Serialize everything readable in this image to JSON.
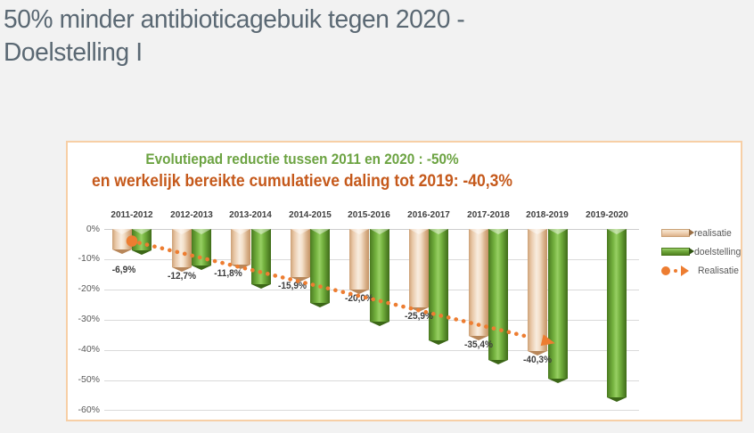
{
  "page": {
    "title_line1": "50% minder antibioticagebuik tegen 2020 -",
    "title_line2": "Doelstelling I"
  },
  "chart": {
    "legend": {
      "realisatie": "realisatie",
      "doelstelling": "doelstelling",
      "trend": "Realisatie"
    },
    "accent_border_color": "#f7cfa6"
  },
  "chart_data": {
    "type": "bar",
    "title": "Evolutiepad reductie tussen 2011 en 2020 : -50%",
    "subtitle": "en werkelijk bereikte cumulatieve daling tot 2019: -40,3%",
    "title_color": "#6ca342",
    "subtitle_color": "#c5591b",
    "categories": [
      "2011-2012",
      "2012-2013",
      "2013-2014",
      "2014-2015",
      "2015-2016",
      "2016-2017",
      "2017-2018",
      "2018-2019",
      "2019-2020"
    ],
    "series": [
      {
        "name": "realisatie",
        "color": "#f2d8be",
        "values": [
          -6.9,
          -12.7,
          -11.8,
          -15.9,
          -20.0,
          -25.9,
          -35.4,
          -40.3,
          null
        ],
        "labels": [
          "-6,9%",
          "-12,7%",
          "-11,8%",
          "-15,9%",
          "-20,0%",
          "-25,9%",
          "-35,4%",
          "-40,3%",
          null
        ]
      },
      {
        "name": "doelstelling",
        "color": "#6fa33c",
        "values": [
          -7.0,
          -12.2,
          -18.2,
          -24.4,
          -30.6,
          -36.9,
          -43.5,
          -49.6,
          -55.7
        ]
      }
    ],
    "trendline": {
      "name": "Realisatie",
      "color": "#ed7d31",
      "style": "dotted-arrow",
      "start_category": "2011-2012",
      "end_category": "2018-2019",
      "start_value": -4.0,
      "end_value": -36.8
    },
    "xlabel": "",
    "ylabel": "",
    "ylim": [
      -60,
      0
    ],
    "yticks": [
      "0%",
      "-10%",
      "-20%",
      "-30%",
      "-40%",
      "-50%",
      "-60%"
    ],
    "grid": true,
    "legend_position": "right"
  }
}
